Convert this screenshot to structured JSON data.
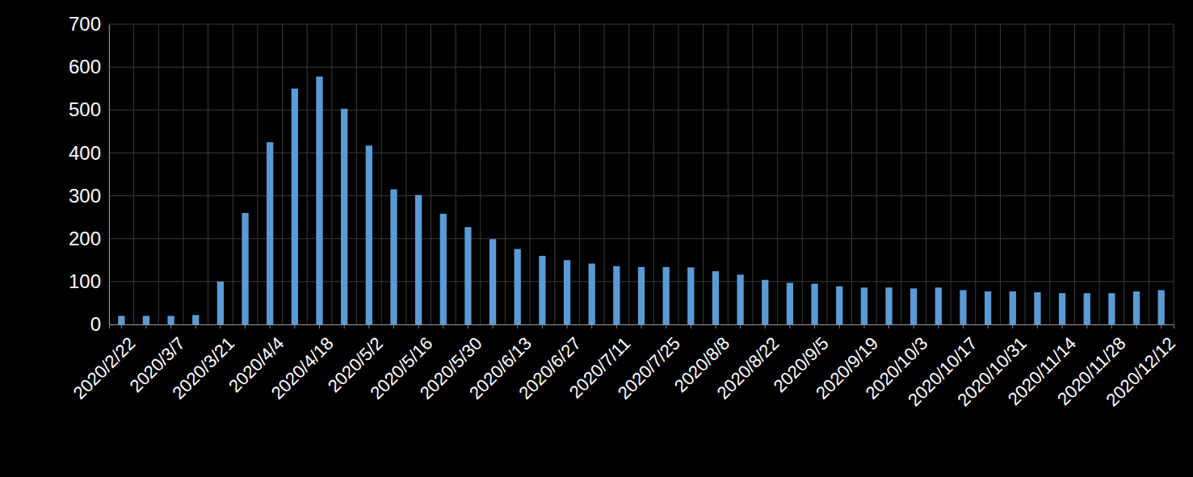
{
  "chart_data": {
    "type": "bar",
    "categories": [
      "2020/2/22",
      null,
      "2020/3/7",
      null,
      "2020/3/21",
      null,
      "2020/4/4",
      null,
      "2020/4/18",
      null,
      "2020/5/2",
      null,
      "2020/5/16",
      null,
      "2020/5/30",
      null,
      "2020/6/13",
      null,
      "2020/6/27",
      null,
      "2020/7/11",
      null,
      "2020/7/25",
      null,
      "2020/8/8",
      null,
      "2020/8/22",
      null,
      "2020/9/5",
      null,
      "2020/9/19",
      null,
      "2020/10/3",
      null,
      "2020/10/17",
      null,
      "2020/10/31",
      null,
      "2020/11/14",
      null,
      "2020/11/28",
      null,
      "2020/12/12"
    ],
    "values": [
      20,
      20,
      20,
      22,
      100,
      260,
      425,
      550,
      578,
      503,
      417,
      315,
      302,
      258,
      227,
      199,
      176,
      160,
      150,
      142,
      136,
      134,
      134,
      133,
      124,
      116,
      104,
      97,
      95,
      89,
      86,
      86,
      84,
      86,
      80,
      77,
      77,
      75,
      73,
      73,
      73,
      77,
      80
    ],
    "color": "#5b9bd5",
    "ylim": [
      0,
      700
    ],
    "yticks": [
      0,
      100,
      200,
      300,
      400,
      500,
      600,
      700
    ],
    "grid": true
  }
}
